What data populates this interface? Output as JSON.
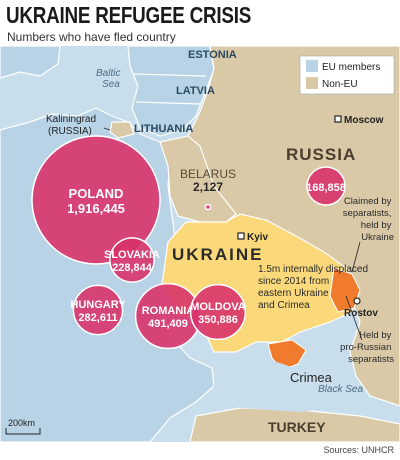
{
  "header": {
    "title": "UKRAINE REFUGEE CRISIS",
    "subtitle": "Numbers who have fled country"
  },
  "legend": {
    "eu_label": "EU members",
    "noneu_label": "Non-EU",
    "eu_color": "#b9d3e6",
    "noneu_color": "#d9c9a6"
  },
  "colors": {
    "sea": "#c8deec",
    "ukraine": "#fbd97a",
    "separatist": "#f07b2d",
    "bubble": "#d8336a",
    "bubble_stroke": "#ffffff"
  },
  "seas": {
    "baltic": "Baltic\nSea",
    "black": "Black Sea"
  },
  "countries": {
    "estonia": "ESTONIA",
    "latvia": "LATVIA",
    "lithuania": "LITHUANIA",
    "russia": "RUSSIA",
    "belarus": "BELARUS",
    "ukraine": "UKRAINE",
    "turkey": "TURKEY",
    "kaliningrad": "Kaliningrad",
    "kaliningrad_sub": "(RUSSIA)"
  },
  "cities": {
    "moscow": "Moscow",
    "kyiv": "Kyiv",
    "rostov": "Rostov",
    "crimea": "Crimea"
  },
  "refugees": [
    {
      "country": "POLAND",
      "value": "1,916,445",
      "count": 1916445
    },
    {
      "country": "SLOVAKIA",
      "value": "228,844",
      "count": 228844
    },
    {
      "country": "HUNGARY",
      "value": "282,611",
      "count": 282611
    },
    {
      "country": "ROMANIA",
      "value": "491,409",
      "count": 491409
    },
    {
      "country": "MOLDOVA",
      "value": "350,886",
      "count": 350886
    },
    {
      "country": "RUSSIA",
      "value": "168,858",
      "count": 168858
    },
    {
      "country": "BELARUS",
      "value": "2,127",
      "count": 2127
    }
  ],
  "annotations": {
    "internal_1": "1.5m internally displaced",
    "internal_2": "since 2014 from",
    "internal_3": "eastern Ukraine",
    "internal_4": "and Crimea",
    "claimed_1": "Claimed by",
    "claimed_2": "separatists,",
    "claimed_3": "held by",
    "claimed_4": "Ukraine",
    "held_1": "Held by",
    "held_2": "pro-Russian",
    "held_3": "separatists"
  },
  "scale": "200km",
  "source": "Sources: UNHCR"
}
